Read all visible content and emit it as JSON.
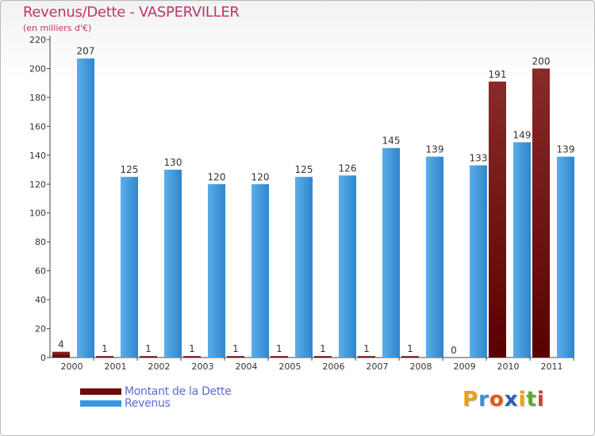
{
  "header": {
    "title": "Revenus/Dette - VASPERVILLER",
    "subtitle": "(en milliers d'€)"
  },
  "legend": {
    "items": [
      {
        "label": "Montant de la Dette",
        "color": "#6b0a0a"
      },
      {
        "label": "Revenus",
        "color": "#3a96dc"
      }
    ]
  },
  "logo": {
    "letters": [
      "P",
      "r",
      "o",
      "x",
      "i",
      "t",
      "i"
    ],
    "colors": [
      "#e8a21a",
      "#3a8fd6",
      "#e05a1a",
      "#2c5fb8",
      "#e8a21a",
      "#5aa82c",
      "#d83a3a"
    ]
  },
  "chart_data": {
    "type": "bar",
    "title": "Revenus/Dette - VASPERVILLER",
    "subtitle": "(en milliers d'€)",
    "categories": [
      "2000",
      "2001",
      "2002",
      "2003",
      "2004",
      "2005",
      "2006",
      "2007",
      "2008",
      "2009",
      "2010",
      "2011"
    ],
    "series": [
      {
        "name": "Montant de la Dette",
        "color": "#6b0a0a",
        "values": [
          4,
          1,
          1,
          1,
          1,
          1,
          1,
          1,
          1,
          0,
          191,
          200
        ]
      },
      {
        "name": "Revenus",
        "color": "#3a96dc",
        "values": [
          207,
          125,
          130,
          120,
          120,
          125,
          126,
          145,
          139,
          133,
          149,
          139
        ]
      }
    ],
    "ylim": [
      0,
      220
    ],
    "yticks": [
      0,
      20,
      40,
      60,
      80,
      100,
      120,
      140,
      160,
      180,
      200,
      220
    ],
    "grid": false,
    "legend_position": "bottom-left"
  }
}
